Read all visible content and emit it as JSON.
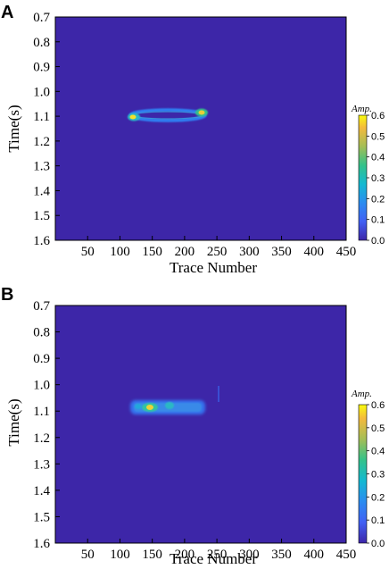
{
  "chart_data": [
    {
      "panel": "A",
      "type": "heatmap",
      "xlabel": "Trace Number",
      "ylabel": "Time(s)",
      "x_ticks": [
        50,
        100,
        150,
        200,
        250,
        300,
        350,
        400,
        450
      ],
      "y_ticks": [
        "0.7",
        "0.8",
        "0.9",
        "1.0",
        "1.1",
        "1.2",
        "1.3",
        "1.4",
        "1.5",
        "1.6"
      ],
      "xlim": [
        0,
        450
      ],
      "ylim": [
        1.6,
        0.7
      ],
      "colorbar": {
        "title": "Amp.",
        "ticks": [
          "0.0",
          "0.1",
          "0.2",
          "0.3",
          "0.4",
          "0.5",
          "0.6"
        ],
        "range": [
          0,
          0.6
        ]
      },
      "features": [
        {
          "kind": "ellipse-ring",
          "x_center": 188,
          "y_center": 1.107,
          "x_half_width": 40,
          "y_half_height": 0.014,
          "amplitude": 0.25
        },
        {
          "kind": "hotspot",
          "x": 149,
          "y": 1.11,
          "amplitude": 0.6
        },
        {
          "kind": "hotspot",
          "x": 226,
          "y": 1.09,
          "amplitude": 0.55
        }
      ]
    },
    {
      "panel": "B",
      "type": "heatmap",
      "xlabel": "Trace Number",
      "ylabel": "Time(s)",
      "x_ticks": [
        50,
        100,
        150,
        200,
        250,
        300,
        350,
        400,
        450
      ],
      "y_ticks": [
        "0.7",
        "0.8",
        "0.9",
        "1.0",
        "1.1",
        "1.2",
        "1.3",
        "1.4",
        "1.5",
        "1.6"
      ],
      "xlim": [
        0,
        450
      ],
      "ylim": [
        1.6,
        0.7
      ],
      "colorbar": {
        "title": "Amp.",
        "ticks": [
          "0.0",
          "0.1",
          "0.2",
          "0.3",
          "0.4",
          "0.5",
          "0.6"
        ],
        "range": [
          0,
          0.6
        ]
      },
      "features": [
        {
          "kind": "band",
          "x_start": 145,
          "x_end": 230,
          "y_center": 1.105,
          "y_half_height": 0.02,
          "amplitude": 0.3
        },
        {
          "kind": "hotspot",
          "x": 168,
          "y": 1.11,
          "amplitude": 0.55
        },
        {
          "kind": "hotspot",
          "x": 190,
          "y": 1.1,
          "amplitude": 0.4
        },
        {
          "kind": "hotspot",
          "x": 155,
          "y": 1.1,
          "amplitude": 0.3
        }
      ]
    }
  ]
}
